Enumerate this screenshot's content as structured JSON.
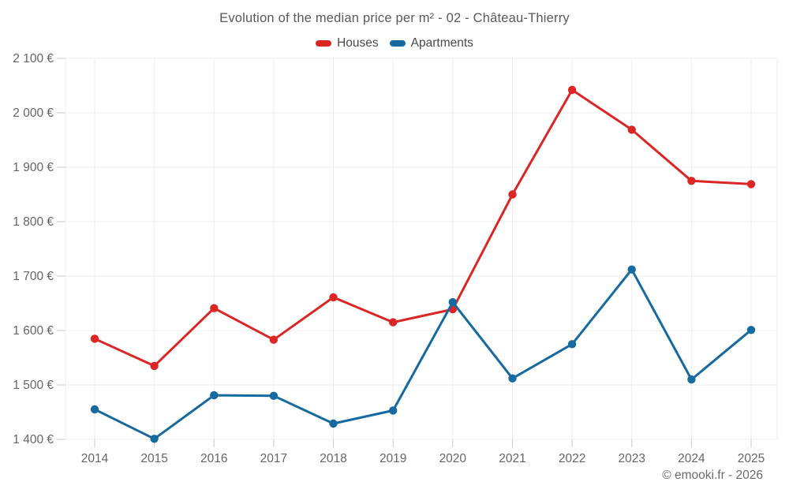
{
  "title": "Evolution of the median price per m² - 02 - Château-Thierry",
  "footer": "© emooki.fr - 2026",
  "legend": {
    "items": [
      {
        "label": "Houses",
        "color": "#dc2626"
      },
      {
        "label": "Apartments",
        "color": "#176a9f"
      }
    ]
  },
  "chart_data": {
    "type": "line",
    "title": "Evolution of the median price per m² - 02 - Château-Thierry",
    "x": [
      2014,
      2015,
      2016,
      2017,
      2018,
      2019,
      2020,
      2021,
      2022,
      2023,
      2024,
      2025
    ],
    "xtick_labels": [
      "2014",
      "2015",
      "2016",
      "2017",
      "2018",
      "2019",
      "2020",
      "2021",
      "2022",
      "2023",
      "2024",
      "2025"
    ],
    "series": [
      {
        "name": "Houses",
        "color": "#dc2626",
        "values": [
          1585,
          1535,
          1641,
          1583,
          1661,
          1615,
          1639,
          1850,
          2042,
          1969,
          1875,
          1869
        ]
      },
      {
        "name": "Apartments",
        "color": "#176a9f",
        "values": [
          1455,
          1401,
          1481,
          1480,
          1429,
          1453,
          1652,
          1512,
          1575,
          1712,
          1510,
          1601
        ]
      }
    ],
    "ylim": [
      1400,
      2100
    ],
    "ytick_step": 100,
    "ytick_labels": [
      "1 400 €",
      "1 500 €",
      "1 600 €",
      "1 700 €",
      "1 800 €",
      "1 900 €",
      "2 000 €",
      "2 100 €"
    ],
    "currency_suffix": "€",
    "grid": true,
    "legend_position": "top-center",
    "colors": {
      "grid_line": "#ededed",
      "tick": "#c9c9c9",
      "axis_label": "#666666",
      "title_text": "#595959",
      "footer_text": "#6b6b6b"
    }
  }
}
